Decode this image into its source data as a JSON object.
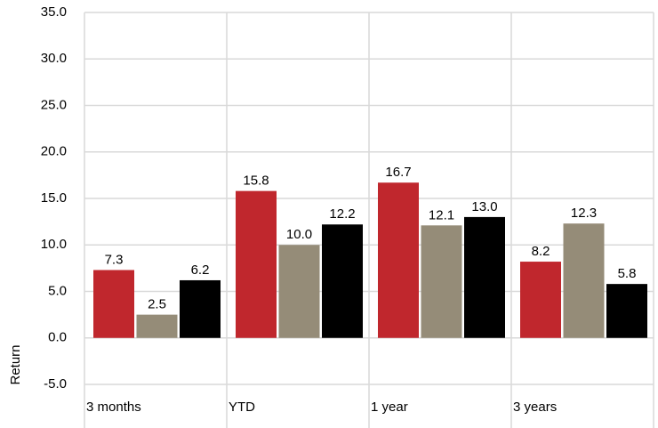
{
  "chart_data": {
    "type": "bar",
    "y_label": "Return",
    "categories": [
      "3 months",
      "YTD",
      "1 year",
      "3 years"
    ],
    "series": [
      {
        "color": "#c0272d",
        "values": [
          7.3,
          15.8,
          16.7,
          8.2
        ],
        "value_labels": [
          "7.3",
          "15.8",
          "16.7",
          "8.2"
        ]
      },
      {
        "color": "#958c78",
        "values": [
          2.5,
          10.0,
          12.1,
          12.3
        ],
        "value_labels": [
          "2.5",
          "10.0",
          "12.1",
          "12.3"
        ]
      },
      {
        "color": "#000000",
        "values": [
          6.2,
          12.2,
          13.0,
          5.8
        ],
        "value_labels": [
          "6.2",
          "12.2",
          "13.0",
          "5.8"
        ]
      }
    ],
    "ylim": [
      -5,
      35
    ],
    "yticks": [
      {
        "value": -5,
        "label": "-5.0"
      },
      {
        "value": 0,
        "label": "0.0"
      },
      {
        "value": 5,
        "label": "5.0"
      },
      {
        "value": 10,
        "label": "10.0"
      },
      {
        "value": 15,
        "label": "15.0"
      },
      {
        "value": 20,
        "label": "20.0"
      },
      {
        "value": 25,
        "label": "25.0"
      },
      {
        "value": 30,
        "label": "30.0"
      },
      {
        "value": 35,
        "label": "35.0"
      }
    ],
    "grid": true
  }
}
